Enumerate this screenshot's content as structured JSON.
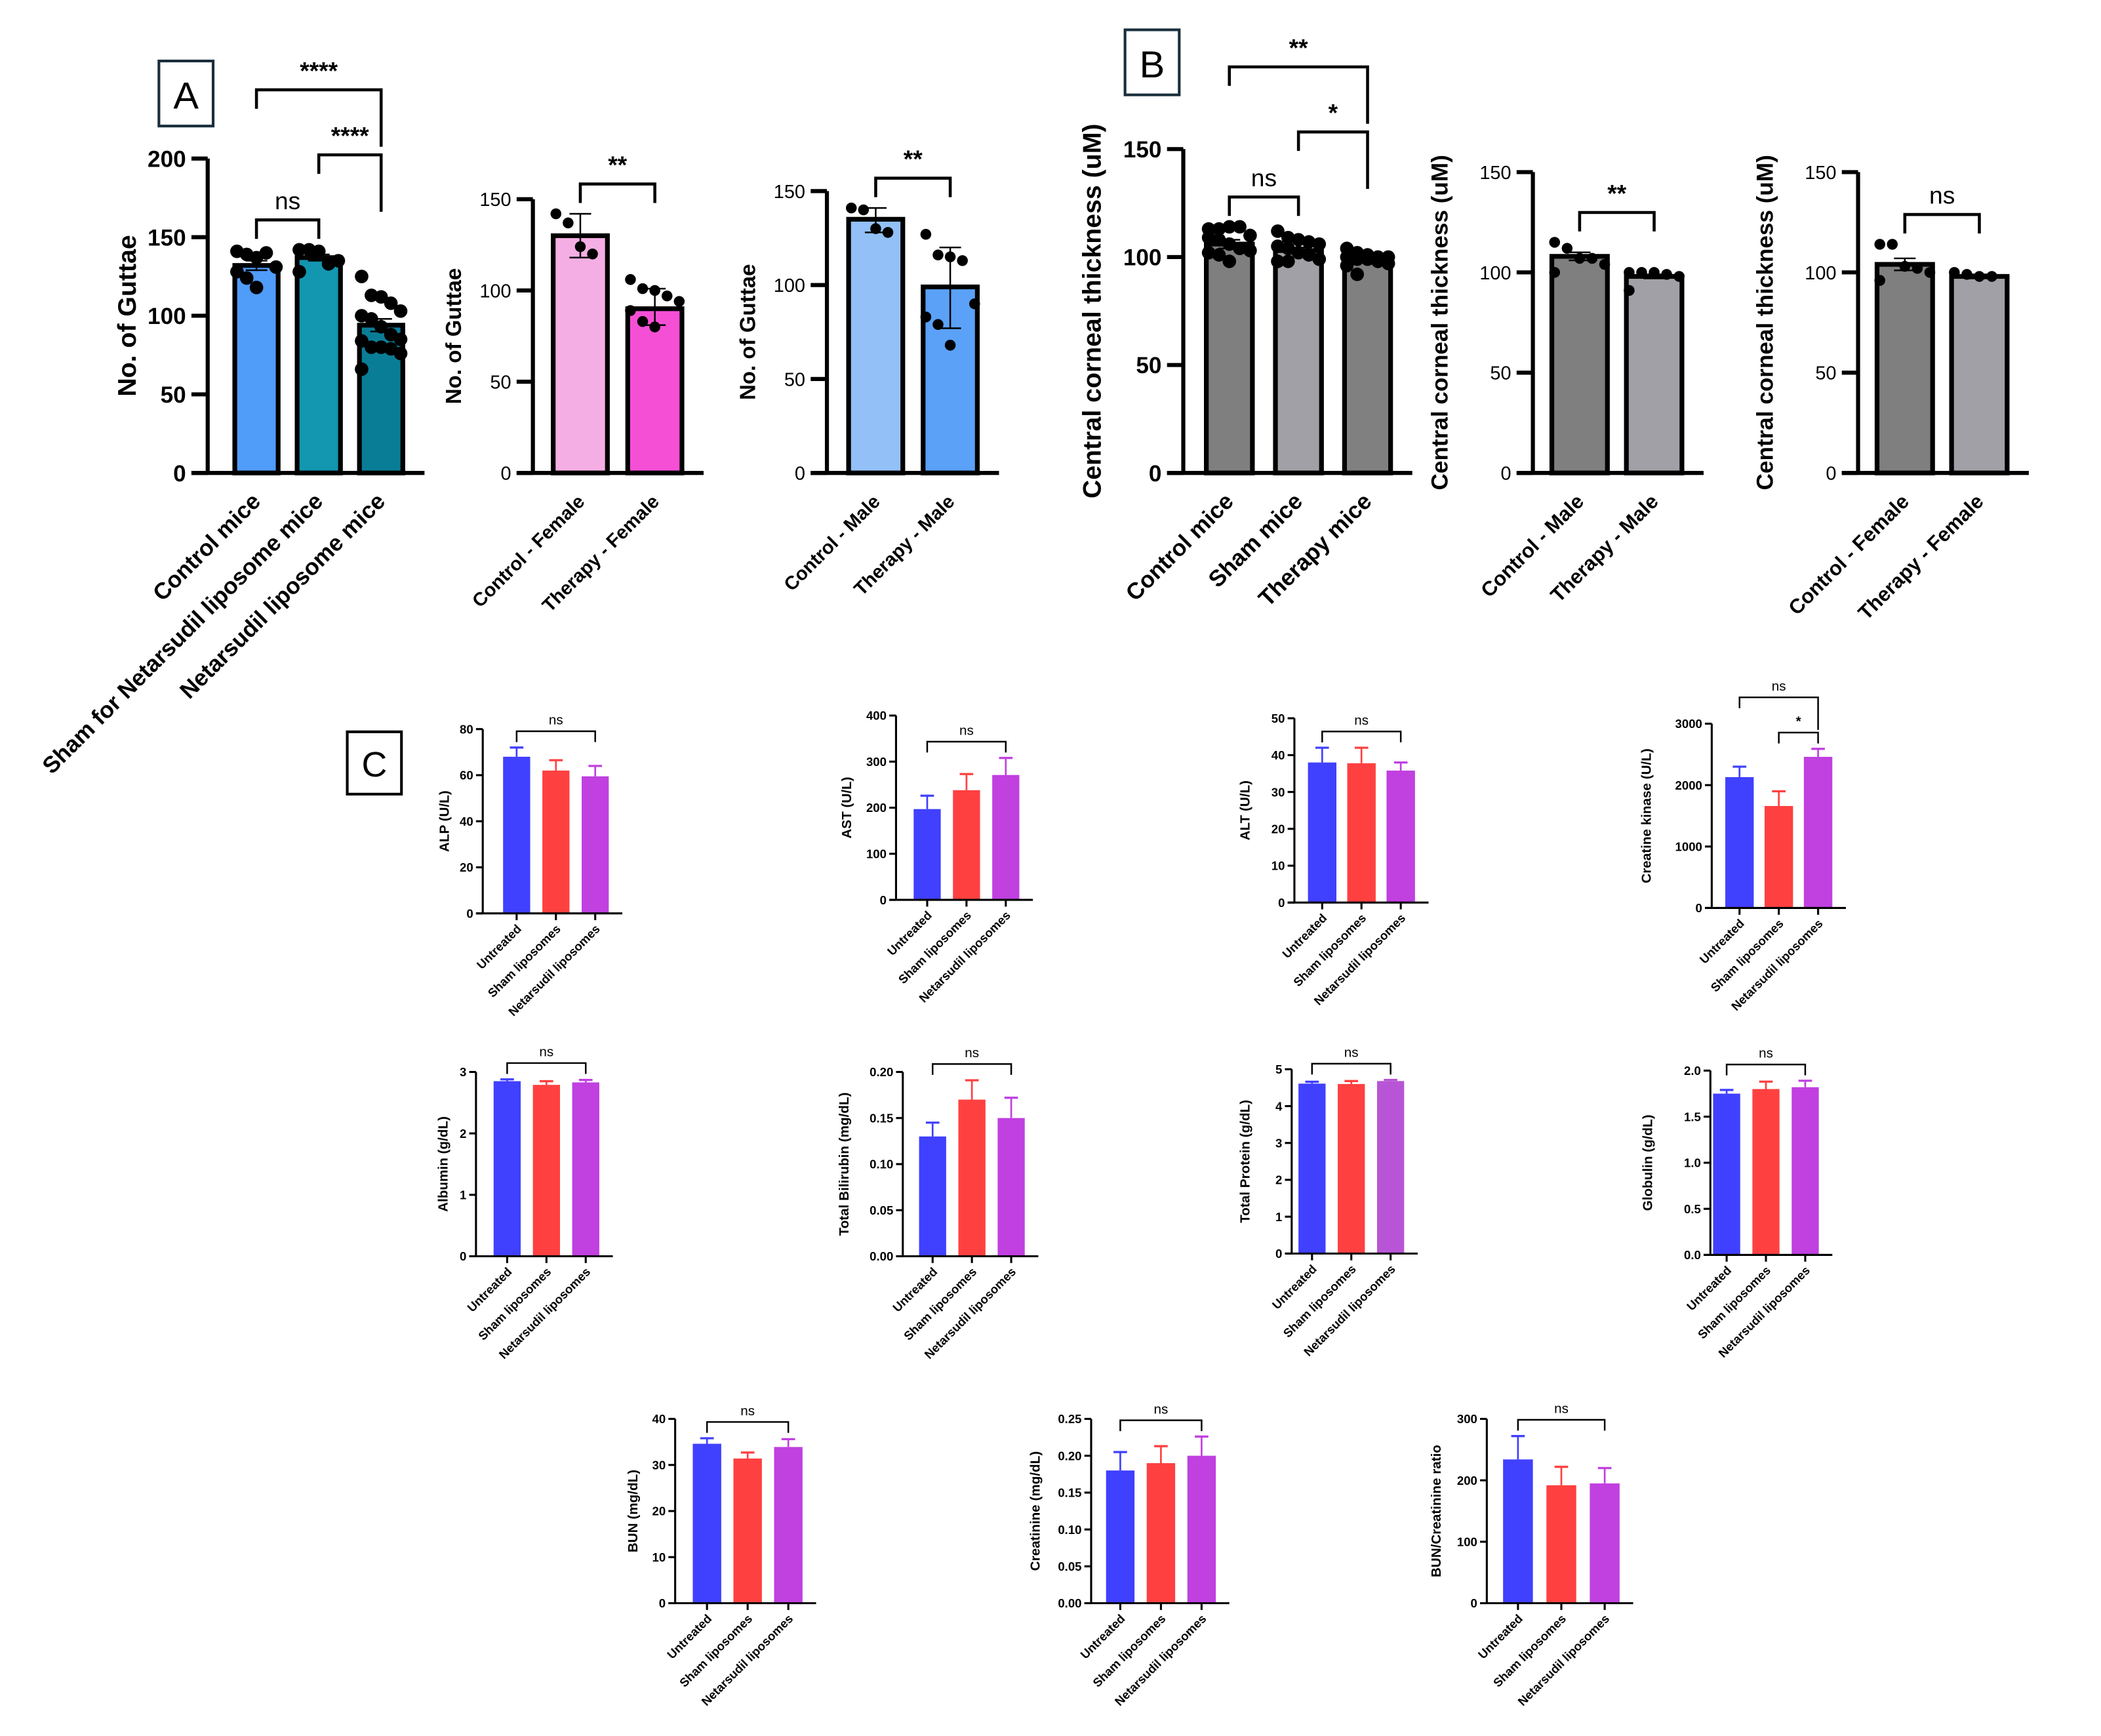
{
  "panels": {
    "A": "A",
    "B": "B",
    "C": "C"
  },
  "chart_data": [
    {
      "id": "A1",
      "type": "bar",
      "panel": "A",
      "ylabel": "No. of Guttae",
      "ylim": [
        0,
        200
      ],
      "yticks": [
        "0",
        "50",
        "100",
        "150",
        "200"
      ],
      "categories": [
        "Control mice",
        "Sham for Netarsudil liposome mice",
        "Netarsudil liposome mice"
      ],
      "values": [
        132,
        137,
        94
      ],
      "error_upper": [
        135,
        139,
        98
      ],
      "error_lower": [
        129,
        135,
        90
      ],
      "colors": [
        "#4f9cf9",
        "#1396b0",
        "#0a7d96"
      ],
      "points": [
        [
          141,
          139,
          137,
          140,
          131,
          128,
          124,
          118
        ],
        [
          142,
          142,
          141,
          133,
          135,
          128
        ],
        [
          125,
          113,
          112,
          108,
          103,
          100,
          98,
          93,
          88,
          85,
          84,
          80,
          80,
          79,
          76,
          66
        ]
      ],
      "comparisons": [
        {
          "groups": [
            0,
            1
          ],
          "label": "ns"
        },
        {
          "groups": [
            1,
            2
          ],
          "label": "****"
        },
        {
          "groups": [
            0,
            2
          ],
          "label": "****"
        }
      ],
      "grid": false
    },
    {
      "id": "A2",
      "type": "bar",
      "panel": "A",
      "ylabel": "No. of Guttae",
      "ylim": [
        0,
        150
      ],
      "yticks": [
        "0",
        "50",
        "100",
        "150"
      ],
      "categories": [
        "Control - Female",
        "Therapy - Female"
      ],
      "values": [
        130,
        90
      ],
      "error_upper": [
        142,
        101
      ],
      "error_lower": [
        118,
        81
      ],
      "colors": [
        "#f5aee3",
        "#f54fd6"
      ],
      "points": [
        [
          142,
          137,
          124,
          120
        ],
        [
          106,
          101,
          100,
          97,
          94,
          89,
          83,
          80
        ]
      ],
      "comparisons": [
        {
          "groups": [
            0,
            1
          ],
          "label": "**"
        }
      ],
      "grid": false
    },
    {
      "id": "A3",
      "type": "bar",
      "panel": "A",
      "ylabel": "No. of Guttae",
      "ylim": [
        0,
        150
      ],
      "yticks": [
        "0",
        "50",
        "100",
        "150"
      ],
      "categories": [
        "Control - Male",
        "Therapy - Male"
      ],
      "values": [
        135,
        99
      ],
      "error_upper": [
        141,
        120
      ],
      "error_lower": [
        128,
        77
      ],
      "colors": [
        "#92c0f7",
        "#5aa1f7"
      ],
      "points": [
        [
          141,
          140,
          130,
          128
        ],
        [
          127,
          116,
          115,
          113,
          90,
          83,
          79,
          68
        ]
      ],
      "comparisons": [
        {
          "groups": [
            0,
            1
          ],
          "label": "**"
        }
      ],
      "grid": false
    },
    {
      "id": "B1",
      "type": "bar",
      "panel": "B",
      "ylabel": "Central corneal thickness (uM)",
      "ylim": [
        0,
        150
      ],
      "yticks": [
        "0",
        "50",
        "100",
        "150"
      ],
      "categories": [
        "Control mice",
        "Sham mice",
        "Therapy mice"
      ],
      "values": [
        106,
        103,
        99
      ],
      "error_upper": [
        108,
        104.5,
        100
      ],
      "error_lower": [
        104,
        101.5,
        98
      ],
      "colors": [
        "#7f7f7f",
        "#a0a0a6",
        "#808080"
      ],
      "points": [
        [
          113,
          113,
          114,
          114,
          110,
          109,
          108,
          106,
          104,
          103,
          102,
          101,
          98
        ],
        [
          112,
          109,
          108,
          107,
          106,
          105,
          104,
          102,
          101,
          99,
          98,
          98
        ],
        [
          104,
          102,
          101,
          100,
          100,
          100,
          99,
          99,
          98,
          97,
          96,
          92
        ]
      ],
      "comparisons": [
        {
          "groups": [
            0,
            1
          ],
          "label": "ns"
        },
        {
          "groups": [
            1,
            2
          ],
          "label": "*"
        },
        {
          "groups": [
            0,
            2
          ],
          "label": "**"
        }
      ],
      "grid": false
    },
    {
      "id": "B2",
      "type": "bar",
      "panel": "B",
      "ylabel": "Central corneal thickness (uM)",
      "ylim": [
        0,
        150
      ],
      "yticks": [
        "0",
        "50",
        "100",
        "150"
      ],
      "categories": [
        "Control - Male",
        "Therapy - Male"
      ],
      "values": [
        108,
        98
      ],
      "error_upper": [
        110,
        99
      ],
      "error_lower": [
        106,
        97
      ],
      "colors": [
        "#7f7f7f",
        "#a0a0a6"
      ],
      "points": [
        [
          115,
          112,
          107,
          107,
          104,
          100
        ],
        [
          100,
          100,
          100,
          99,
          98,
          91
        ]
      ],
      "comparisons": [
        {
          "groups": [
            0,
            1
          ],
          "label": "**"
        }
      ],
      "grid": false
    },
    {
      "id": "B3",
      "type": "bar",
      "panel": "B",
      "ylabel": "Central corneal thickness (uM)",
      "ylim": [
        0,
        150
      ],
      "yticks": [
        "0",
        "50",
        "100",
        "150"
      ],
      "categories": [
        "Control - Female",
        "Therapy - Female"
      ],
      "values": [
        104,
        98
      ],
      "error_upper": [
        107,
        99
      ],
      "error_lower": [
        101,
        97
      ],
      "colors": [
        "#7f7f7f",
        "#a0a0a6"
      ],
      "points": [
        [
          114,
          114,
          103,
          102,
          100,
          96
        ],
        [
          100,
          99,
          98,
          98
        ]
      ],
      "comparisons": [
        {
          "groups": [
            0,
            1
          ],
          "label": "ns"
        }
      ],
      "grid": false
    },
    {
      "id": "C1",
      "type": "bar",
      "panel": "C",
      "ylabel": "ALP (U/L)",
      "ylim": [
        0,
        80
      ],
      "yticks": [
        "0",
        "20",
        "40",
        "60",
        "80"
      ],
      "categories": [
        "Untreated",
        "Sham liposomes",
        "Netarsudil liposomes"
      ],
      "values": [
        68,
        62,
        59.5
      ],
      "error_upper": [
        72,
        66.5,
        64
      ],
      "colors": [
        "#4040ff",
        "#ff4040",
        "#c040e0"
      ],
      "comparisons": [
        {
          "groups": [
            0,
            2
          ],
          "label": "ns"
        }
      ],
      "grid": false
    },
    {
      "id": "C2",
      "type": "bar",
      "panel": "C",
      "ylabel": "AST (U/L)",
      "ylim": [
        0,
        400
      ],
      "yticks": [
        "0",
        "100",
        "200",
        "300",
        "400"
      ],
      "categories": [
        "Untreated",
        "Sham liposomes",
        "Netarsudil liposomes"
      ],
      "values": [
        197,
        238,
        271
      ],
      "error_upper": [
        226,
        273,
        308
      ],
      "colors": [
        "#4040ff",
        "#ff4040",
        "#c040e0"
      ],
      "comparisons": [
        {
          "groups": [
            0,
            2
          ],
          "label": "ns"
        }
      ],
      "grid": false
    },
    {
      "id": "C3",
      "type": "bar",
      "panel": "C",
      "ylabel": "ALT (U/L)",
      "ylim": [
        0,
        50
      ],
      "yticks": [
        "0",
        "10",
        "20",
        "30",
        "40",
        "50"
      ],
      "categories": [
        "Untreated",
        "Sham liposomes",
        "Netarsudil liposomes"
      ],
      "values": [
        38,
        37.8,
        35.8
      ],
      "error_upper": [
        42,
        42,
        38
      ],
      "colors": [
        "#4040ff",
        "#ff4040",
        "#c040e0"
      ],
      "comparisons": [
        {
          "groups": [
            0,
            2
          ],
          "label": "ns"
        }
      ],
      "grid": false
    },
    {
      "id": "C4",
      "type": "bar",
      "panel": "C",
      "ylabel": "Creatine kinase (U/L)",
      "ylim": [
        0,
        3000
      ],
      "yticks": [
        "0",
        "1000",
        "2000",
        "3000"
      ],
      "categories": [
        "Untreated",
        "Sham liposomes",
        "Netarsudil liposomes"
      ],
      "values": [
        2130,
        1660,
        2460
      ],
      "error_upper": [
        2300,
        1900,
        2590
      ],
      "colors": [
        "#4040ff",
        "#ff4040",
        "#c040e0"
      ],
      "comparisons": [
        {
          "groups": [
            1,
            2
          ],
          "label": "*"
        },
        {
          "groups": [
            0,
            2
          ],
          "label": "ns"
        }
      ],
      "grid": false
    },
    {
      "id": "C5",
      "type": "bar",
      "panel": "C",
      "ylabel": "Albumin (g/dL)",
      "ylim": [
        0,
        3
      ],
      "yticks": [
        "0",
        "1",
        "2",
        "3"
      ],
      "categories": [
        "Untreated",
        "Sham liposomes",
        "Netarsudil liposomes"
      ],
      "values": [
        2.85,
        2.79,
        2.83
      ],
      "error_upper": [
        2.88,
        2.85,
        2.87
      ],
      "colors": [
        "#4040ff",
        "#ff4040",
        "#c040e0"
      ],
      "comparisons": [
        {
          "groups": [
            0,
            2
          ],
          "label": "ns"
        }
      ],
      "grid": false
    },
    {
      "id": "C6",
      "type": "bar",
      "panel": "C",
      "ylabel": "Total Bilirubin (mg/dL)",
      "ylim": [
        0,
        0.2
      ],
      "yticks": [
        "0.00",
        "0.05",
        "0.10",
        "0.15",
        "0.20"
      ],
      "categories": [
        "Untreated",
        "Sham liposomes",
        "Netarsudil liposomes"
      ],
      "values": [
        0.13,
        0.17,
        0.15
      ],
      "error_upper": [
        0.145,
        0.191,
        0.172
      ],
      "colors": [
        "#4040ff",
        "#ff4040",
        "#c040e0"
      ],
      "comparisons": [
        {
          "groups": [
            0,
            2
          ],
          "label": "ns"
        }
      ],
      "grid": false
    },
    {
      "id": "C7",
      "type": "bar",
      "panel": "C",
      "ylabel": "Total Protein (g/dL)",
      "ylim": [
        0,
        5
      ],
      "yticks": [
        "0",
        "1",
        "2",
        "3",
        "4",
        "5"
      ],
      "categories": [
        "Untreated",
        "Sham liposomes",
        "Netarsudil liposomes"
      ],
      "values": [
        4.61,
        4.6,
        4.68
      ],
      "error_upper": [
        4.66,
        4.68,
        4.71
      ],
      "colors": [
        "#4040ff",
        "#ff4040",
        "#b855d6"
      ],
      "comparisons": [
        {
          "groups": [
            0,
            2
          ],
          "label": "ns"
        }
      ],
      "grid": false
    },
    {
      "id": "C8",
      "type": "bar",
      "panel": "C",
      "ylabel": "Globulin (g/dL)",
      "ylim": [
        0,
        2
      ],
      "yticks": [
        "0.0",
        "0.5",
        "1.0",
        "1.5",
        "2.0"
      ],
      "categories": [
        "Untreated",
        "Sham liposomes",
        "Netarsudil liposomes"
      ],
      "values": [
        1.75,
        1.8,
        1.82
      ],
      "error_upper": [
        1.79,
        1.88,
        1.89
      ],
      "colors": [
        "#4040ff",
        "#ff4040",
        "#c040e0"
      ],
      "comparisons": [
        {
          "groups": [
            0,
            2
          ],
          "label": "ns"
        }
      ],
      "grid": false
    },
    {
      "id": "C9",
      "type": "bar",
      "panel": "C",
      "ylabel": "BUN (mg/dL)",
      "ylim": [
        0,
        40
      ],
      "yticks": [
        "0",
        "10",
        "20",
        "30",
        "40"
      ],
      "categories": [
        "Untreated",
        "Sham liposomes",
        "Netarsudil liposomes"
      ],
      "values": [
        34.6,
        31.4,
        33.9
      ],
      "error_upper": [
        35.8,
        32.7,
        35.6
      ],
      "colors": [
        "#4040ff",
        "#ff4040",
        "#c040e0"
      ],
      "comparisons": [
        {
          "groups": [
            0,
            2
          ],
          "label": "ns"
        }
      ],
      "grid": false
    },
    {
      "id": "C10",
      "type": "bar",
      "panel": "C",
      "ylabel": "Creatinine (mg/dL)",
      "ylim": [
        0,
        0.25
      ],
      "yticks": [
        "0.00",
        "0.05",
        "0.10",
        "0.15",
        "0.20",
        "0.25"
      ],
      "categories": [
        "Untreated",
        "Sham liposomes",
        "Netarsudil liposomes"
      ],
      "values": [
        0.18,
        0.19,
        0.2
      ],
      "error_upper": [
        0.205,
        0.213,
        0.226
      ],
      "colors": [
        "#4040ff",
        "#ff4040",
        "#c040e0"
      ],
      "comparisons": [
        {
          "groups": [
            0,
            2
          ],
          "label": "ns"
        }
      ],
      "grid": false
    },
    {
      "id": "C11",
      "type": "bar",
      "panel": "C",
      "ylabel": "BUN/Creatinine ratio",
      "ylim": [
        0,
        300
      ],
      "yticks": [
        "0",
        "100",
        "200",
        "300"
      ],
      "categories": [
        "Untreated",
        "Sham liposomes",
        "Netarsudil liposomes"
      ],
      "values": [
        234,
        192,
        195
      ],
      "error_upper": [
        272,
        222,
        220
      ],
      "colors": [
        "#4040ff",
        "#ff4040",
        "#c040e0"
      ],
      "comparisons": [
        {
          "groups": [
            0,
            2
          ],
          "label": "ns"
        }
      ],
      "grid": false
    }
  ]
}
